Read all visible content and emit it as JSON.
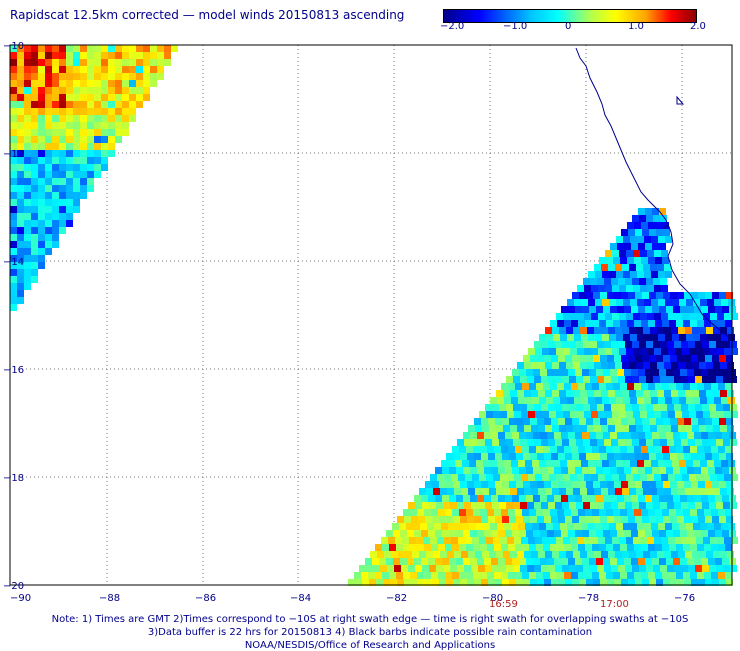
{
  "title": "Rapidscat 12.5km corrected — model winds 20150813 ascending",
  "colorbar": {
    "ticks": [
      "−2.0",
      "−1.0",
      "0",
      "1.0",
      "2.0"
    ],
    "colors": [
      "#00008b",
      "#0000ff",
      "#00ffff",
      "#ffff00",
      "#ff0000",
      "#8b0000"
    ]
  },
  "map": {
    "lon_labels": [
      "−90",
      "−88",
      "−86",
      "−84",
      "−82",
      "−80",
      "−78",
      "−76"
    ],
    "lat_labels": [
      "−10",
      "−12",
      "−14",
      "−16",
      "−18",
      "−20"
    ],
    "coastline_color": "#00008b"
  },
  "time_labels": [
    "16:59",
    "17:00"
  ],
  "notes": [
    "Note: 1) Times are GMT 2)Times correspond to −10S at right swath edge — time is right swath for overlapping swaths at −10S",
    "3)Data buffer is 22 hrs for 20150813 4) Black barbs indicate possible rain contamination",
    "NOAA/NESDIS/Office of Research and Applications"
  ]
}
